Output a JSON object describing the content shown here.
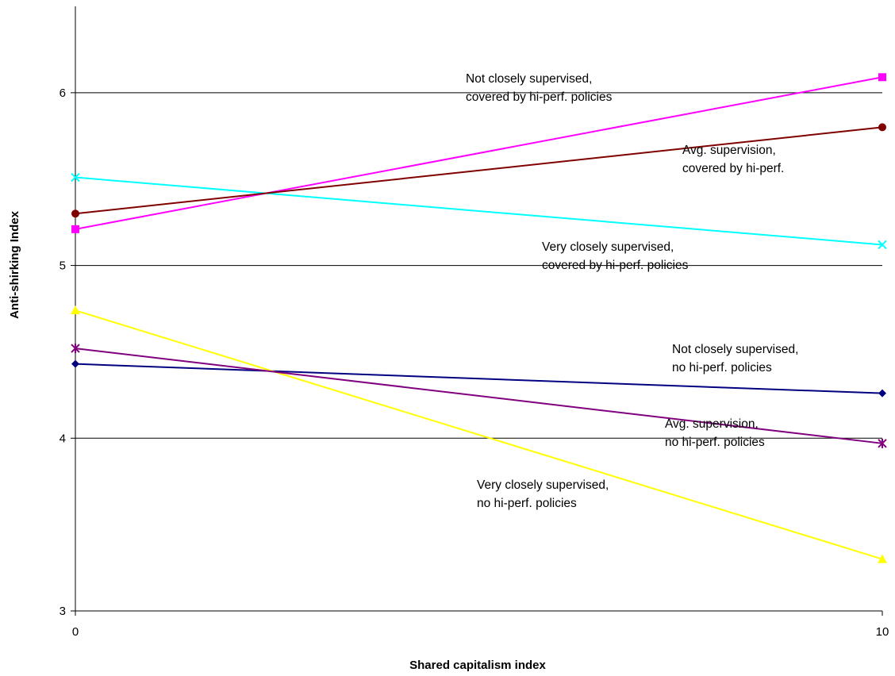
{
  "chart_data": {
    "type": "line",
    "title": "",
    "xlabel": "Shared capitalism index",
    "ylabel": "Anti-shirking Index",
    "x": [
      0,
      10
    ],
    "xlim": [
      0,
      10
    ],
    "ylim": [
      3,
      6.5
    ],
    "x_ticks": [
      "0",
      "10"
    ],
    "y_ticks": [
      3,
      4,
      5,
      6
    ],
    "y_tick_labels": [
      "3",
      "4",
      "5",
      "6"
    ],
    "grid": "horizontal",
    "legend": "none",
    "series": [
      {
        "values": [
          4.43,
          4.26
        ],
        "color": "#000080",
        "marker": "diamond"
      },
      {
        "values": [
          5.21,
          6.09
        ],
        "color": "#FF00FF",
        "marker": "square"
      },
      {
        "values": [
          4.74,
          3.3
        ],
        "color": "#FFFF00",
        "marker": "triangle"
      },
      {
        "values": [
          5.51,
          5.12
        ],
        "color": "#00FFFF",
        "marker": "x"
      },
      {
        "values": [
          4.52,
          3.97
        ],
        "color": "#800080",
        "marker": "star"
      },
      {
        "values": [
          5.3,
          5.8
        ],
        "color": "#800000",
        "marker": "circle"
      }
    ],
    "annotations": [
      {
        "id": "annot-not-closely-covered",
        "lines": [
          "Not closely supervised,",
          "covered by hi-perf. policies"
        ]
      },
      {
        "id": "annot-avg-covered",
        "lines": [
          "Avg. supervision,",
          "covered by hi-perf."
        ]
      },
      {
        "id": "annot-very-closely-covered",
        "lines": [
          "Very closely supervised,",
          "covered by hi-perf. policies"
        ]
      },
      {
        "id": "annot-not-closely-no",
        "lines": [
          "Not closely supervised,",
          "no hi-perf. policies"
        ]
      },
      {
        "id": "annot-avg-no",
        "lines": [
          "Avg. supervision,",
          "no hi-perf. policies"
        ]
      },
      {
        "id": "annot-very-closely-no",
        "lines": [
          "Very closely supervised,",
          "no hi-perf. policies"
        ]
      }
    ]
  }
}
